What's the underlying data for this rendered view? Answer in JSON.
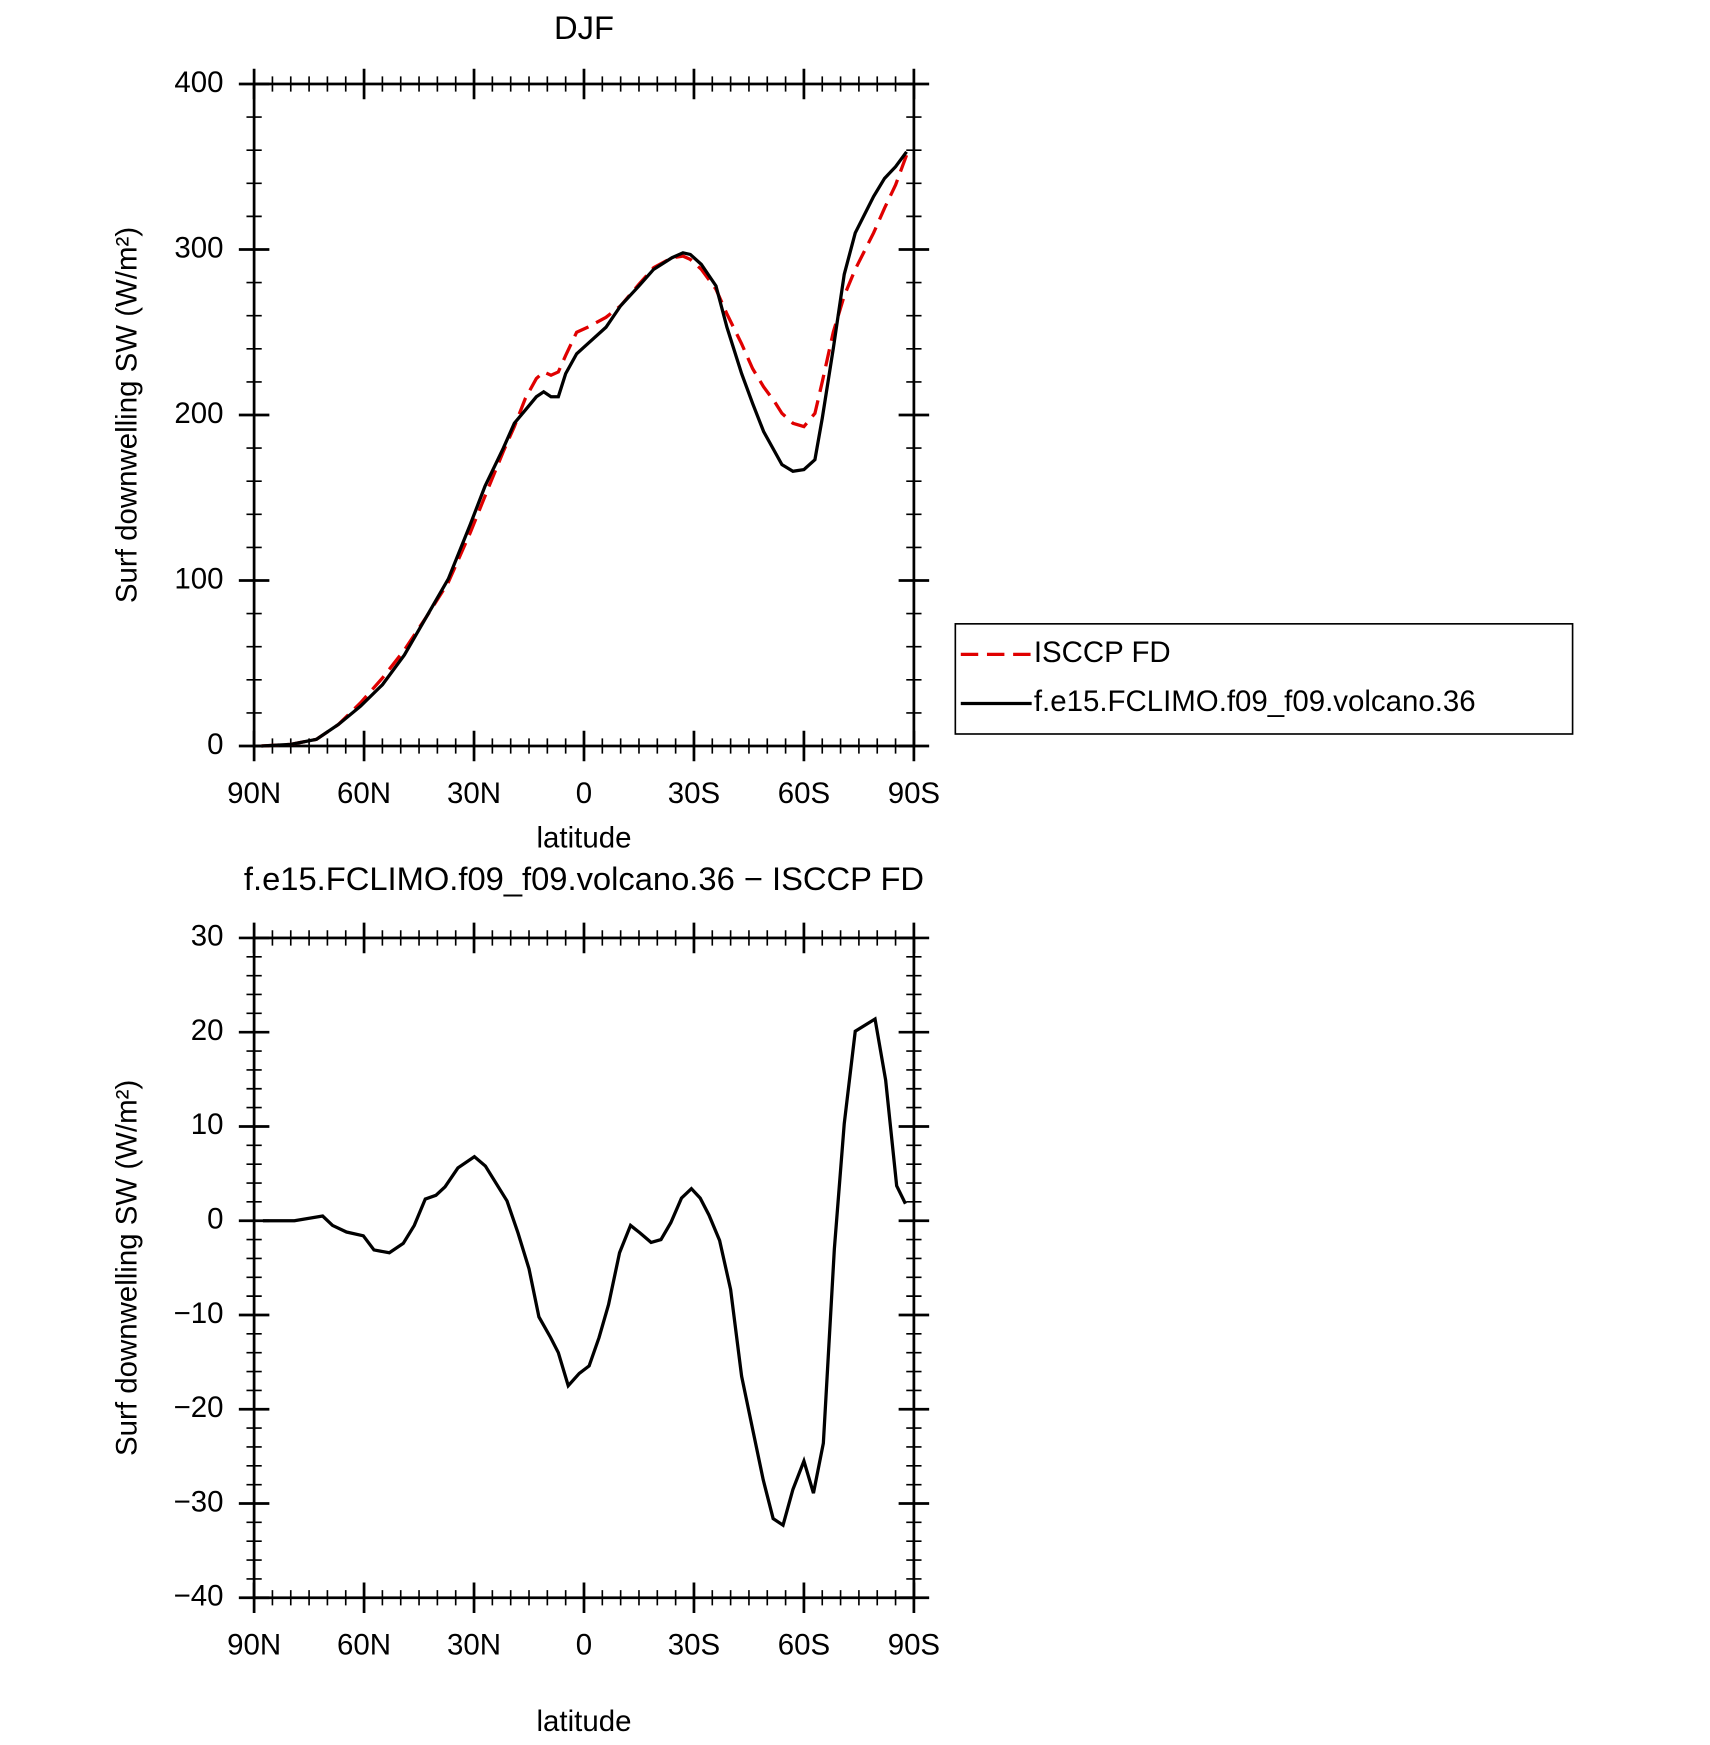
{
  "chart_data": [
    {
      "type": "line",
      "title": "DJF",
      "xlabel": "latitude",
      "ylabel": "Surf downwelling SW (W/m²)",
      "x": [
        88,
        80,
        73,
        67,
        61,
        55,
        49,
        43,
        37,
        31,
        27,
        22,
        19,
        16,
        13,
        11,
        9,
        7,
        5,
        2,
        -1,
        -6,
        -10,
        -15,
        -19,
        -24,
        -27,
        -29,
        -32,
        -36,
        -39,
        -43,
        -46,
        -49,
        -52,
        -54,
        -57,
        -60,
        -63,
        -65,
        -68,
        -71,
        -74,
        -79,
        -82,
        -85,
        -88
      ],
      "series": [
        {
          "name": "ISCCP FD",
          "color": "#e00000",
          "style": "dashed",
          "values": [
            0,
            1,
            4,
            13,
            26,
            41,
            58,
            78,
            99,
            129,
            151,
            178,
            193,
            210,
            222,
            226,
            224,
            226,
            236,
            250,
            253,
            259,
            266,
            279,
            289,
            295,
            296,
            294,
            288,
            276,
            261,
            243,
            228,
            217,
            208,
            201,
            195,
            193,
            201,
            220,
            250,
            272,
            288,
            310,
            325,
            339,
            357
          ]
        },
        {
          "name": "f.e15.FCLIMO.f09_f09.volcano.36",
          "color": "#000000",
          "style": "solid",
          "values": [
            0,
            1,
            4,
            13,
            24,
            37,
            55,
            78,
            101,
            134,
            157,
            180,
            195,
            203,
            211,
            214,
            211,
            211,
            225,
            237,
            243,
            253,
            266,
            278,
            288,
            295,
            298,
            297,
            291,
            278,
            253,
            225,
            207,
            190,
            178,
            170,
            166,
            167,
            173,
            198,
            240,
            285,
            310,
            332,
            343,
            350,
            359
          ]
        }
      ],
      "xlim": [
        90,
        -90
      ],
      "xticks": [
        {
          "value": 90,
          "label": "90N"
        },
        {
          "value": 60,
          "label": "60N"
        },
        {
          "value": 30,
          "label": "30N"
        },
        0,
        {
          "value": -30,
          "label": "30S"
        },
        {
          "value": -60,
          "label": "60S"
        },
        {
          "value": -90,
          "label": "90S"
        }
      ],
      "ylim": [
        0,
        400
      ],
      "yticks": [
        0,
        100,
        200,
        300,
        400
      ],
      "legend": "right"
    },
    {
      "type": "line",
      "title": "f.e15.FCLIMO.f09_f09.volcano.36 − ISCCP FD",
      "xlabel": "latitude",
      "ylabel": "Surf downwelling SW (W/m²)",
      "x": [
        87.6,
        79.0,
        71.3,
        68.6,
        64.8,
        60.2,
        57.3,
        53.1,
        49.3,
        46.3,
        43.3,
        40.4,
        37.9,
        34.4,
        29.9,
        26.9,
        21.0,
        18.0,
        15.0,
        12.3,
        9.1,
        7.0,
        4.3,
        1.3,
        -1.4,
        -4.1,
        -6.7,
        -9.7,
        -12.7,
        -15.3,
        -18.3,
        -21.0,
        -23.7,
        -26.6,
        -29.3,
        -31.7,
        -34.1,
        -37.0,
        -40.0,
        -43.0,
        -46.0,
        -48.9,
        -51.6,
        -54.3,
        -57.0,
        -60.0,
        -62.6,
        -65.3,
        -68.3,
        -71.0,
        -74.0,
        -79.4,
        -82.3,
        -85.3,
        -87.7
      ],
      "series": [
        {
          "color": "#000000",
          "style": "solid",
          "values": [
            0,
            0,
            0.5,
            -0.5,
            -1.2,
            -1.6,
            -3.1,
            -3.4,
            -2.4,
            -0.5,
            2.3,
            2.7,
            3.6,
            5.6,
            6.8,
            5.8,
            2.1,
            -1.3,
            -5.1,
            -10.2,
            -12.4,
            -14.0,
            -17.5,
            -16.2,
            -15.4,
            -12.4,
            -8.9,
            -3.4,
            -0.5,
            -1.3,
            -2.3,
            -2.0,
            -0.2,
            2.4,
            3.4,
            2.4,
            0.6,
            -2.1,
            -7.3,
            -16.5,
            -22.1,
            -27.5,
            -31.6,
            -32.3,
            -28.5,
            -25.5,
            -28.9,
            -23.6,
            -3.0,
            10.3,
            20.1,
            21.4,
            14.9,
            3.7,
            1.8
          ]
        }
      ],
      "xlim": [
        90,
        -90
      ],
      "xticks": [
        {
          "value": 90,
          "label": "90N"
        },
        {
          "value": 60,
          "label": "60N"
        },
        {
          "value": 30,
          "label": "30N"
        },
        0,
        {
          "value": -30,
          "label": "30S"
        },
        {
          "value": -60,
          "label": "60S"
        },
        {
          "value": -90,
          "label": "90S"
        }
      ],
      "ylim": [
        -40,
        30
      ],
      "yticks": [
        {
          "value": -40,
          "label": "−40"
        },
        {
          "value": -30,
          "label": "−30"
        },
        {
          "value": -20,
          "label": "−20"
        },
        {
          "value": -10,
          "label": "−10"
        },
        0,
        10,
        20,
        30
      ]
    }
  ]
}
